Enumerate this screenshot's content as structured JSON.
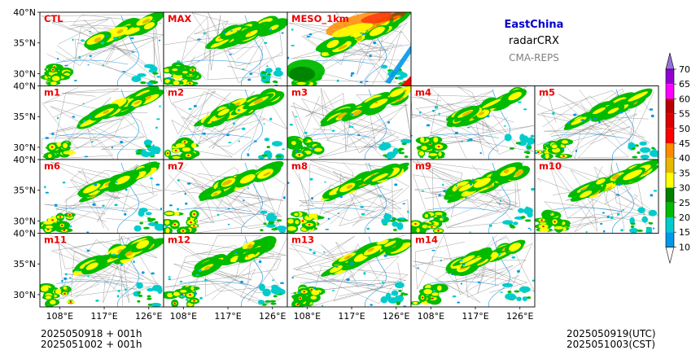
{
  "header": {
    "region": "EastChina",
    "region_color": "#0000cc",
    "variable": "radarCRX",
    "system": "CMA-REPS",
    "system_color": "#808080"
  },
  "footer": {
    "init_utc": "2025050918  +  001h",
    "init_cst": "2025051002  +  001h",
    "valid_utc": "2025050919(UTC)",
    "valid_cst": "2025051003(CST)"
  },
  "panels": [
    [
      "CTL",
      "MAX",
      "MESO_1km"
    ],
    [
      "m1",
      "m2",
      "m3",
      "m4",
      "m5"
    ],
    [
      "m6",
      "m7",
      "m8",
      "m9",
      "m10"
    ],
    [
      "m11",
      "m12",
      "m13",
      "m14"
    ]
  ],
  "lat_ticks": [
    "40°N",
    "35°N",
    "30°N"
  ],
  "lon_ticks": [
    "108°E",
    "117°E",
    "126°E"
  ],
  "chart_data": {
    "type": "heatmap",
    "colorbar": {
      "levels": [
        10,
        15,
        20,
        25,
        30,
        35,
        40,
        45,
        50,
        55,
        60,
        65,
        70
      ],
      "tick_labels": [
        "10",
        "15",
        "20",
        "25",
        "30",
        "35",
        "40",
        "45",
        "50",
        "55",
        "60",
        "65",
        "70"
      ],
      "colors": [
        "#0098e8",
        "#00cccc",
        "#00bb00",
        "#007f00",
        "#ffff00",
        "#e6b800",
        "#ff8c00",
        "#ff0000",
        "#dd0000",
        "#b80000",
        "#ff00ff",
        "#9400d3",
        "#9370db"
      ],
      "extend": "both"
    },
    "lat_range": [
      28,
      40
    ],
    "lon_range": [
      104,
      129
    ]
  }
}
